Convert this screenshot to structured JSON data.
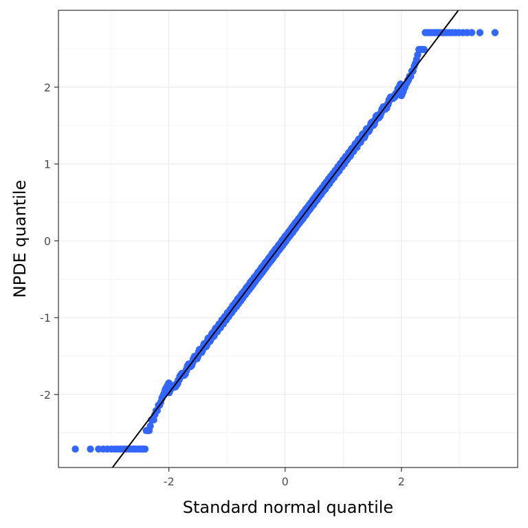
{
  "chart_data": {
    "type": "scatter",
    "xlabel": "Standard normal quantile",
    "ylabel": "NPDE quantile",
    "xlim": [
      -3.9,
      4.0
    ],
    "ylim": [
      -2.95,
      3.0
    ],
    "x_ticks": [
      -2,
      0,
      2
    ],
    "y_ticks": [
      -2,
      -1,
      0,
      1,
      2
    ],
    "x_minor_ticks": [
      -3,
      -1,
      1,
      3
    ],
    "y_minor_ticks": [
      -2.5,
      -1.5,
      -0.5,
      0.5,
      1.5,
      2.5
    ],
    "grid": true,
    "point_color": "#3366ff",
    "line_color": "#000000",
    "reference_line": {
      "intercept": 0.02,
      "slope": 1.0
    },
    "sample": {
      "n": 1500,
      "clip_low": -2.71,
      "clip_high": 2.71,
      "tail_points_low": [
        [
          -3.61,
          -2.71
        ],
        [
          -3.35,
          -2.71
        ],
        [
          -3.21,
          -2.71
        ],
        [
          -3.13,
          -2.71
        ],
        [
          -3.06,
          -2.71
        ],
        [
          -2.99,
          -2.71
        ],
        [
          -2.93,
          -2.71
        ],
        [
          -2.88,
          -2.71
        ],
        [
          -2.83,
          -2.71
        ],
        [
          -2.78,
          -2.71
        ],
        [
          -2.74,
          -2.71
        ],
        [
          -2.7,
          -2.71
        ],
        [
          -2.66,
          -2.71
        ],
        [
          -2.62,
          -2.71
        ],
        [
          -2.59,
          -2.71
        ],
        [
          -2.56,
          -2.71
        ],
        [
          -2.52,
          -2.71
        ],
        [
          -2.49,
          -2.71
        ],
        [
          -2.46,
          -2.71
        ],
        [
          -2.44,
          -2.71
        ],
        [
          -2.41,
          -2.71
        ],
        [
          -2.39,
          -2.47
        ],
        [
          -2.36,
          -2.47
        ],
        [
          -2.34,
          -2.47
        ],
        [
          -2.32,
          -2.41
        ],
        [
          -2.3,
          -2.33
        ],
        [
          -2.28,
          -2.33
        ],
        [
          -2.26,
          -2.33
        ],
        [
          -2.24,
          -2.26
        ],
        [
          -2.22,
          -2.21
        ],
        [
          -2.2,
          -2.21
        ],
        [
          -2.18,
          -2.14
        ],
        [
          -2.16,
          -2.14
        ],
        [
          -2.14,
          -2.1
        ],
        [
          -2.12,
          -2.05
        ],
        [
          -2.11,
          -2.03
        ],
        [
          -2.09,
          -2.0
        ],
        [
          -2.07,
          -1.96
        ],
        [
          -2.06,
          -1.93
        ],
        [
          -2.04,
          -1.91
        ],
        [
          -2.03,
          -1.89
        ],
        [
          -2.01,
          -1.86
        ],
        [
          -2.0,
          -1.85
        ]
      ],
      "tail_points_high": [
        [
          3.61,
          2.71
        ],
        [
          3.35,
          2.71
        ],
        [
          3.21,
          2.71
        ],
        [
          3.13,
          2.71
        ],
        [
          3.06,
          2.71
        ],
        [
          2.99,
          2.71
        ],
        [
          2.93,
          2.71
        ],
        [
          2.88,
          2.71
        ],
        [
          2.83,
          2.71
        ],
        [
          2.78,
          2.71
        ],
        [
          2.74,
          2.71
        ],
        [
          2.7,
          2.71
        ],
        [
          2.66,
          2.71
        ],
        [
          2.62,
          2.71
        ],
        [
          2.59,
          2.71
        ],
        [
          2.56,
          2.71
        ],
        [
          2.52,
          2.71
        ],
        [
          2.49,
          2.71
        ],
        [
          2.46,
          2.71
        ],
        [
          2.44,
          2.71
        ],
        [
          2.41,
          2.71
        ],
        [
          2.39,
          2.49
        ],
        [
          2.36,
          2.49
        ],
        [
          2.34,
          2.49
        ],
        [
          2.32,
          2.49
        ],
        [
          2.3,
          2.49
        ],
        [
          2.28,
          2.42
        ],
        [
          2.26,
          2.36
        ],
        [
          2.24,
          2.31
        ],
        [
          2.22,
          2.27
        ],
        [
          2.2,
          2.21
        ],
        [
          2.18,
          2.21
        ],
        [
          2.16,
          2.14
        ],
        [
          2.14,
          2.14
        ],
        [
          2.12,
          2.09
        ],
        [
          2.11,
          2.09
        ],
        [
          2.09,
          2.05
        ],
        [
          2.07,
          2.03
        ],
        [
          2.06,
          2.0
        ],
        [
          2.04,
          1.97
        ],
        [
          2.03,
          1.94
        ],
        [
          2.01,
          1.91
        ],
        [
          2.0,
          1.89
        ]
      ]
    }
  }
}
